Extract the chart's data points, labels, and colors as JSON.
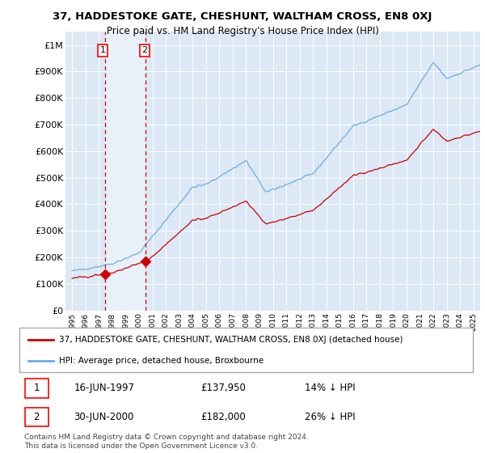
{
  "title": "37, HADDESTOKE GATE, CHESHUNT, WALTHAM CROSS, EN8 0XJ",
  "subtitle": "Price paid vs. HM Land Registry's House Price Index (HPI)",
  "sale1_date": "16-JUN-1997",
  "sale1_price": 137950,
  "sale1_label": "14% ↓ HPI",
  "sale1_year": 1997.46,
  "sale2_date": "30-JUN-2000",
  "sale2_price": 182000,
  "sale2_label": "26% ↓ HPI",
  "sale2_year": 2000.5,
  "hpi_line_color": "#6aade0",
  "price_line_color": "#cc0000",
  "marker_color": "#cc0000",
  "dashed_line_color": "#cc0000",
  "legend_label_price": "37, HADDESTOKE GATE, CHESHUNT, WALTHAM CROSS, EN8 0XJ (detached house)",
  "legend_label_hpi": "HPI: Average price, detached house, Broxbourne",
  "footer": "Contains HM Land Registry data © Crown copyright and database right 2024.\nThis data is licensed under the Open Government Licence v3.0.",
  "background_color": "#dce8f5",
  "highlight_color": "#e8f1fa",
  "ylim_min": 0,
  "ylim_max": 1050000,
  "xlim_min": 1994.5,
  "xlim_max": 2025.5
}
